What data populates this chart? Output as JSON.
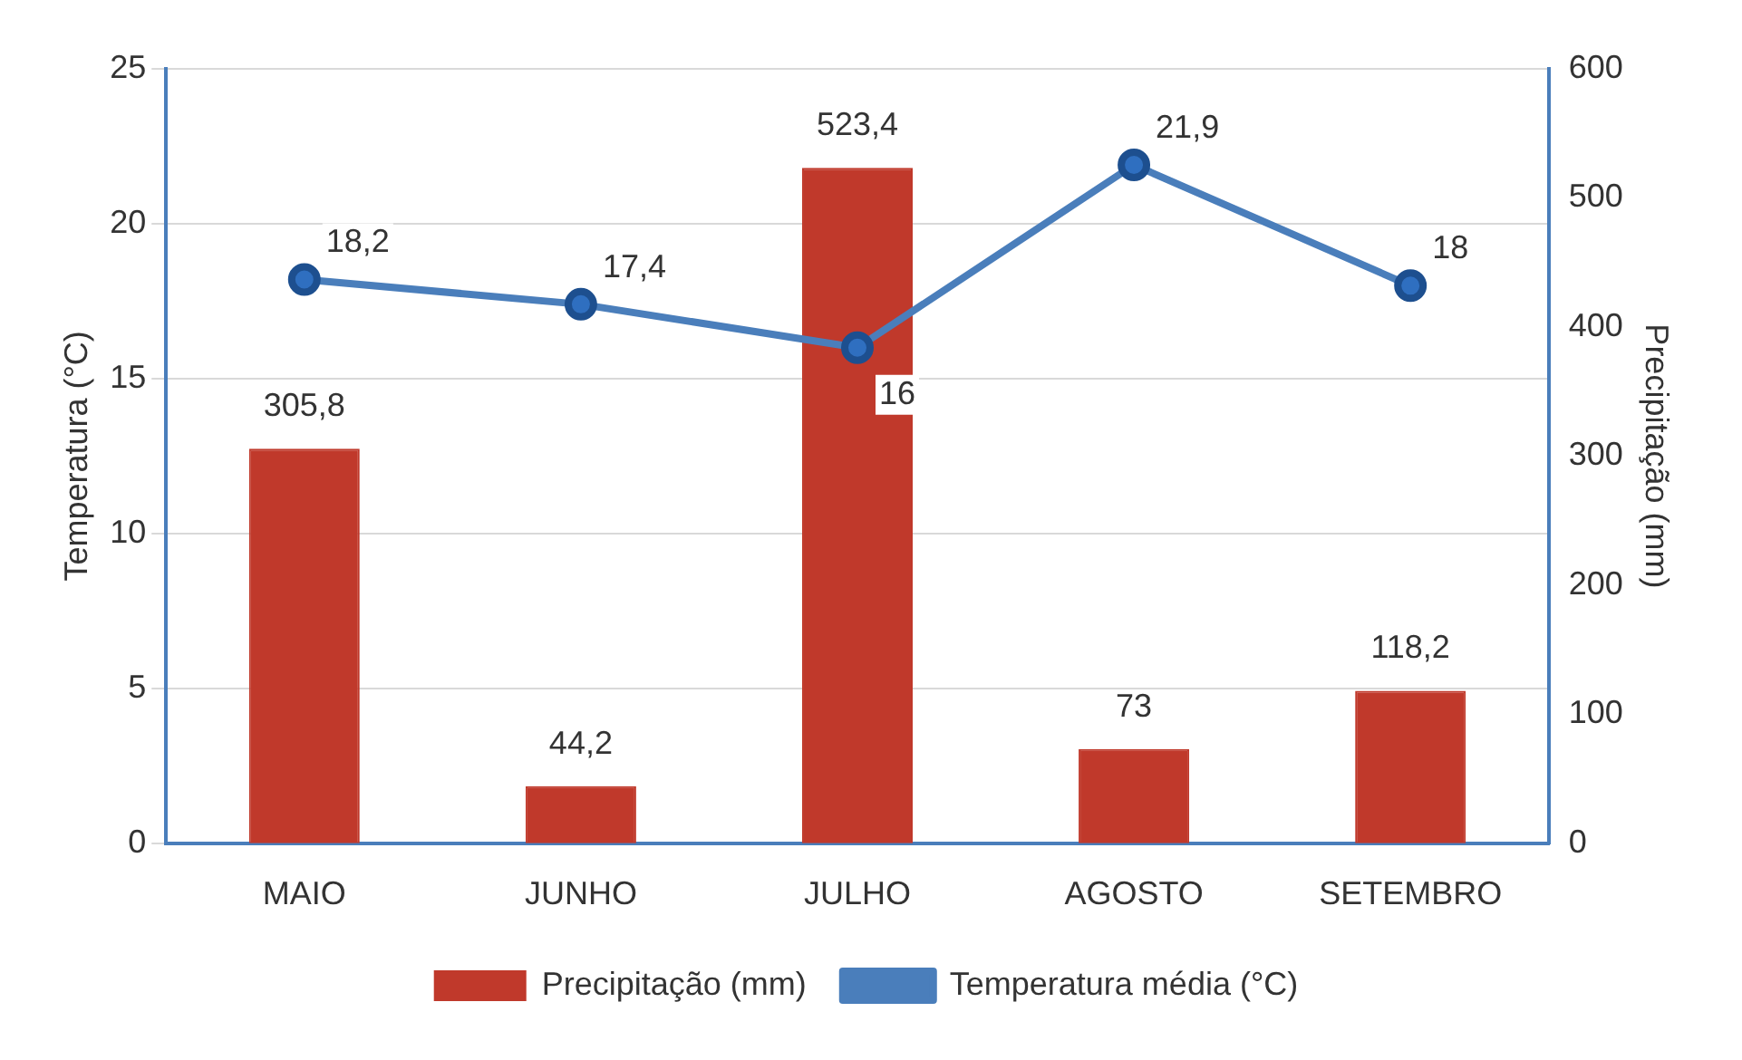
{
  "chart_data": {
    "type": "bar",
    "categories": [
      "MAIO",
      "JUNHO",
      "JULHO",
      "AGOSTO",
      "SETEMBRO"
    ],
    "ylabel": "Temperatura (°C)",
    "y2label": "Precipitação (mm)",
    "ylim": [
      0,
      25
    ],
    "yticks": [
      0,
      5,
      10,
      15,
      20,
      25
    ],
    "y2lim": [
      0,
      600
    ],
    "y2ticks": [
      0,
      100,
      200,
      300,
      400,
      500,
      600
    ],
    "grid": "y",
    "legend": "bottom",
    "series": [
      {
        "name": "Precipitação (mm)",
        "axis": "y2",
        "color": "#c0392b",
        "values": [
          305.8,
          44.2,
          523.4,
          73,
          118.2
        ],
        "value_labels": [
          "305,8",
          "44,2",
          "523,4",
          "73",
          "118,2"
        ]
      },
      {
        "name": "Temperatura média (°C)",
        "type": "line",
        "color": "#4a7ebb",
        "marker": "circle",
        "values": [
          18.2,
          17.4,
          16,
          21.9,
          18
        ],
        "value_labels": [
          "18,2",
          "17,4",
          "16",
          "21,9",
          "18"
        ]
      }
    ]
  }
}
